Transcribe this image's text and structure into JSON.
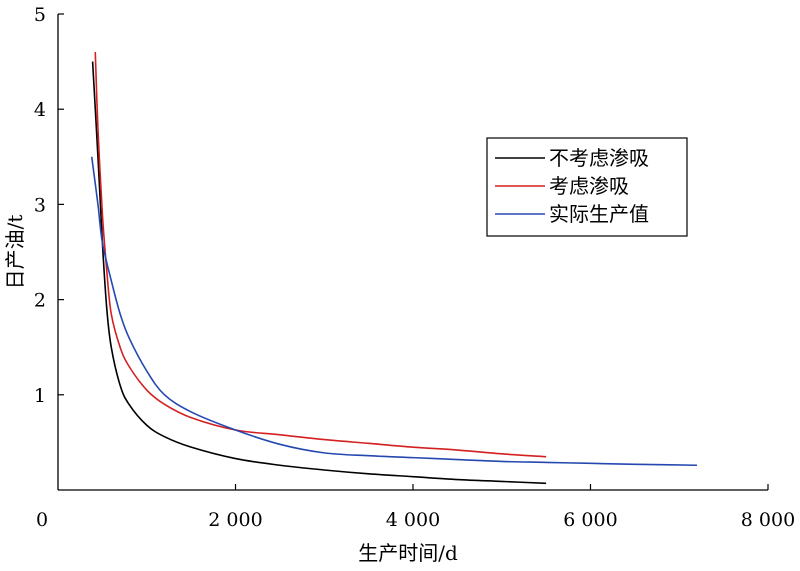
{
  "chart_data": {
    "type": "line",
    "xlabel": "生产时间/d",
    "ylabel": "日产油/t",
    "xlim": [
      0,
      8000
    ],
    "ylim": [
      0,
      5
    ],
    "x_ticks": [
      0,
      2000,
      4000,
      6000,
      8000
    ],
    "x_tick_labels": [
      "0",
      "2 000",
      "4 000",
      "6 000",
      "8 000"
    ],
    "y_ticks": [
      1,
      2,
      3,
      4,
      5
    ],
    "y_tick_labels": [
      "1",
      "2",
      "3",
      "4",
      "5"
    ],
    "grid": false,
    "legend_position": "right",
    "series": [
      {
        "name": "不考虑渗吸",
        "color": "#000000",
        "x": [
          390,
          450,
          500,
          550,
          600,
          700,
          800,
          1000,
          1200,
          1500,
          2000,
          2500,
          3000,
          3500,
          4000,
          4500,
          5000,
          5500
        ],
        "y": [
          4.5,
          3.5,
          2.6,
          1.9,
          1.5,
          1.1,
          0.9,
          0.68,
          0.56,
          0.45,
          0.33,
          0.26,
          0.21,
          0.17,
          0.14,
          0.11,
          0.09,
          0.07
        ]
      },
      {
        "name": "考虑渗吸",
        "color": "#d42020",
        "x": [
          420,
          450,
          500,
          550,
          600,
          700,
          800,
          1000,
          1200,
          1500,
          2000,
          2500,
          3000,
          3500,
          4000,
          4500,
          5000,
          5500
        ],
        "y": [
          4.6,
          3.8,
          2.9,
          2.3,
          1.85,
          1.5,
          1.3,
          1.05,
          0.9,
          0.76,
          0.63,
          0.58,
          0.53,
          0.49,
          0.45,
          0.42,
          0.38,
          0.35
        ]
      },
      {
        "name": "实际生产值",
        "color": "#2448b0",
        "x": [
          380,
          450,
          500,
          600,
          700,
          800,
          1000,
          1200,
          1500,
          2000,
          2500,
          3000,
          3500,
          4000,
          4500,
          5000,
          5500,
          6000,
          6500,
          7200
        ],
        "y": [
          3.5,
          3.0,
          2.6,
          2.2,
          1.85,
          1.6,
          1.25,
          1.0,
          0.82,
          0.63,
          0.48,
          0.39,
          0.36,
          0.34,
          0.32,
          0.3,
          0.29,
          0.28,
          0.27,
          0.26
        ]
      }
    ]
  }
}
